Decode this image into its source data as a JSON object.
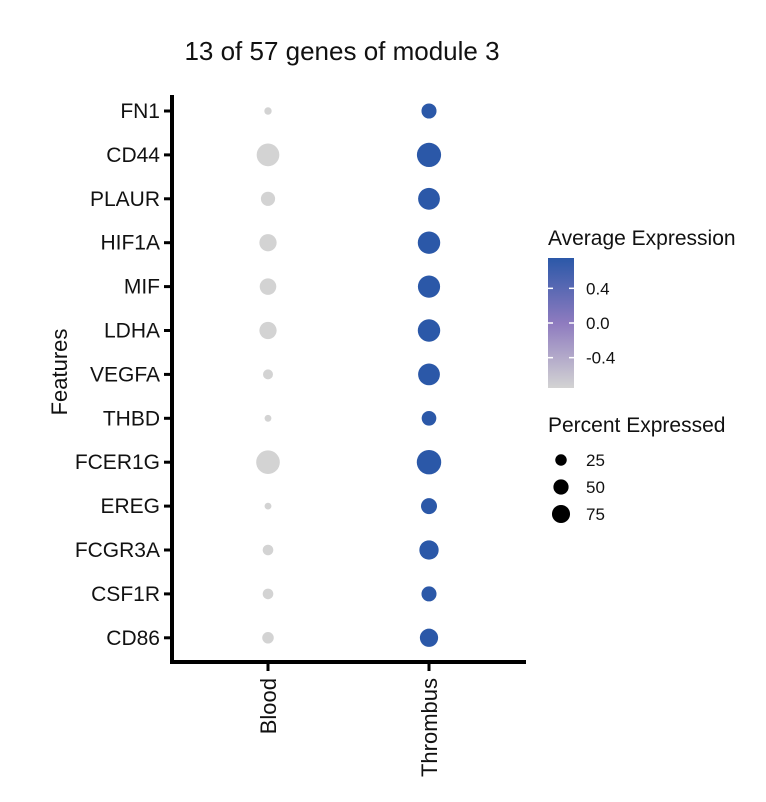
{
  "chart_data": {
    "type": "dot",
    "title": "13 of 57 genes of module 3",
    "xlabel": "",
    "ylabel": "Features",
    "categories": [
      "Blood",
      "Thrombus"
    ],
    "features": [
      "FN1",
      "CD44",
      "PLAUR",
      "HIF1A",
      "MIF",
      "LDHA",
      "VEGFA",
      "THBD",
      "FCER1G",
      "EREG",
      "FCGR3A",
      "CSF1R",
      "CD86"
    ],
    "points": [
      {
        "feature": "FN1",
        "group": "Blood",
        "avg_exp": -0.75,
        "pct_exp": 4
      },
      {
        "feature": "FN1",
        "group": "Thrombus",
        "avg_exp": 0.75,
        "pct_exp": 30
      },
      {
        "feature": "CD44",
        "group": "Blood",
        "avg_exp": -0.75,
        "pct_exp": 80
      },
      {
        "feature": "CD44",
        "group": "Thrombus",
        "avg_exp": 0.75,
        "pct_exp": 93
      },
      {
        "feature": "PLAUR",
        "group": "Blood",
        "avg_exp": -0.75,
        "pct_exp": 26
      },
      {
        "feature": "PLAUR",
        "group": "Thrombus",
        "avg_exp": 0.75,
        "pct_exp": 73
      },
      {
        "feature": "HIF1A",
        "group": "Blood",
        "avg_exp": -0.75,
        "pct_exp": 42
      },
      {
        "feature": "HIF1A",
        "group": "Thrombus",
        "avg_exp": 0.75,
        "pct_exp": 78
      },
      {
        "feature": "MIF",
        "group": "Blood",
        "avg_exp": -0.75,
        "pct_exp": 38
      },
      {
        "feature": "MIF",
        "group": "Thrombus",
        "avg_exp": 0.75,
        "pct_exp": 76
      },
      {
        "feature": "LDHA",
        "group": "Blood",
        "avg_exp": -0.75,
        "pct_exp": 42
      },
      {
        "feature": "LDHA",
        "group": "Thrombus",
        "avg_exp": 0.75,
        "pct_exp": 78
      },
      {
        "feature": "VEGFA",
        "group": "Blood",
        "avg_exp": -0.75,
        "pct_exp": 10
      },
      {
        "feature": "VEGFA",
        "group": "Thrombus",
        "avg_exp": 0.75,
        "pct_exp": 73
      },
      {
        "feature": "THBD",
        "group": "Blood",
        "avg_exp": -0.75,
        "pct_exp": 3
      },
      {
        "feature": "THBD",
        "group": "Thrombus",
        "avg_exp": 0.75,
        "pct_exp": 28
      },
      {
        "feature": "FCER1G",
        "group": "Blood",
        "avg_exp": -0.75,
        "pct_exp": 88
      },
      {
        "feature": "FCER1G",
        "group": "Thrombus",
        "avg_exp": 0.75,
        "pct_exp": 95
      },
      {
        "feature": "EREG",
        "group": "Blood",
        "avg_exp": -0.75,
        "pct_exp": 3
      },
      {
        "feature": "EREG",
        "group": "Thrombus",
        "avg_exp": 0.75,
        "pct_exp": 35
      },
      {
        "feature": "FCGR3A",
        "group": "Blood",
        "avg_exp": -0.75,
        "pct_exp": 12
      },
      {
        "feature": "FCGR3A",
        "group": "Thrombus",
        "avg_exp": 0.75,
        "pct_exp": 55
      },
      {
        "feature": "CSF1R",
        "group": "Blood",
        "avg_exp": -0.75,
        "pct_exp": 12
      },
      {
        "feature": "CSF1R",
        "group": "Thrombus",
        "avg_exp": 0.75,
        "pct_exp": 30
      },
      {
        "feature": "CD86",
        "group": "Blood",
        "avg_exp": -0.75,
        "pct_exp": 15
      },
      {
        "feature": "CD86",
        "group": "Thrombus",
        "avg_exp": 0.75,
        "pct_exp": 48
      }
    ],
    "color_legend": {
      "title": "Average Expression",
      "ticks": [
        0.4,
        0.0,
        -0.4
      ],
      "tick_labels": [
        "0.4",
        "0.0",
        "-0.4"
      ],
      "range": [
        -0.75,
        0.75
      ],
      "low_color": "#d3d3d3",
      "mid_color": "#8e7bbf",
      "high_color": "#2b58a8"
    },
    "size_legend": {
      "title": "Percent Expressed",
      "values": [
        25,
        50,
        75
      ],
      "labels": [
        "25",
        "50",
        "75"
      ]
    },
    "grid": false,
    "legend_position": "right"
  }
}
